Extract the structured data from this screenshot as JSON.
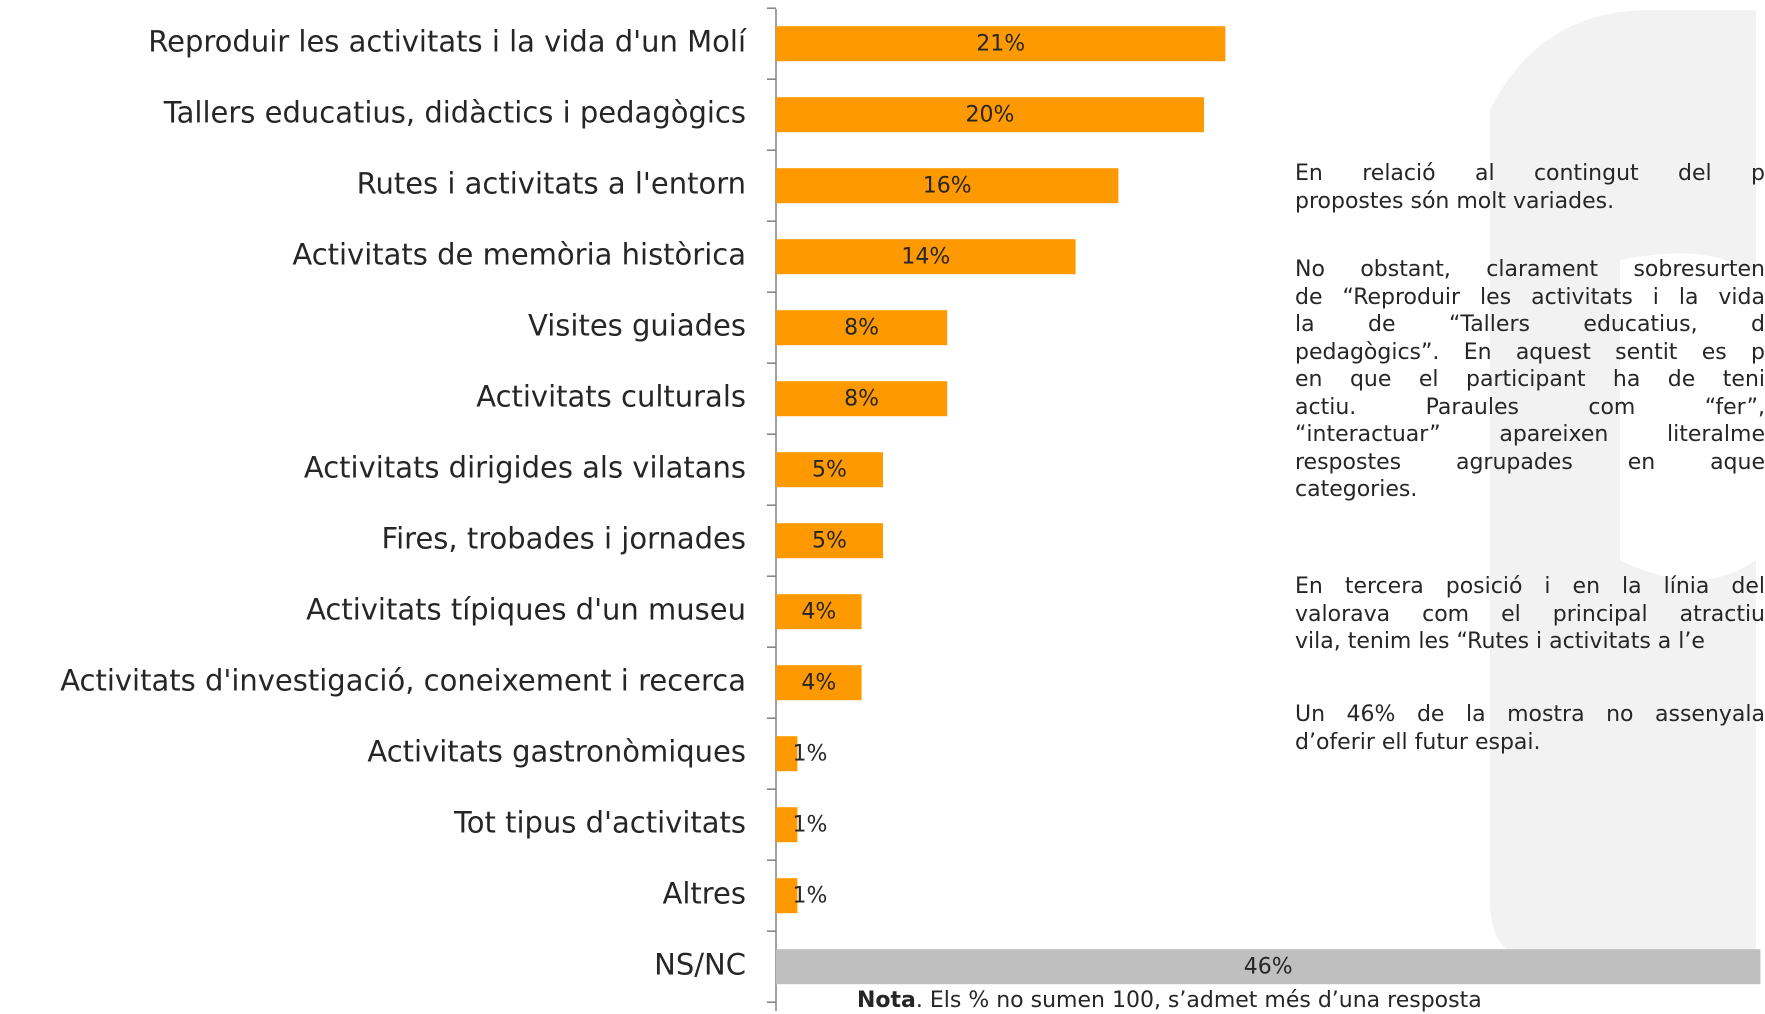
{
  "chart_data": {
    "type": "barh",
    "categories": [
      "Reproduir les activitats i la vida d'un Molí",
      "Tallers educatius, didàctics i pedagògics",
      "Rutes i activitats a l'entorn",
      "Activitats de memòria històrica",
      "Visites guiades",
      "Activitats culturals",
      "Activitats dirigides als vilatans",
      "Fires, trobades i jornades",
      "Activitats típiques d'un  museu",
      "Activitats d'investigació, coneixement i recerca",
      "Activitats gastronòmiques",
      "Tot tipus d'activitats",
      "Altres",
      "NS/NC"
    ],
    "values": [
      21,
      20,
      16,
      14,
      8,
      8,
      5,
      5,
      4,
      4,
      1,
      1,
      1,
      46
    ],
    "value_labels": [
      "21%",
      "20%",
      "16%",
      "14%",
      "8%",
      "8%",
      "5%",
      "5%",
      "4%",
      "4%",
      "1%",
      "1%",
      "1%",
      "46%"
    ],
    "colors": [
      "#ff9900",
      "#ff9900",
      "#ff9900",
      "#ff9900",
      "#ff9900",
      "#ff9900",
      "#ff9900",
      "#ff9900",
      "#ff9900",
      "#ff9900",
      "#ff9900",
      "#ff9900",
      "#ff9900",
      "#bfbfbf"
    ],
    "note_label": "Nota",
    "note_text": ". Els % no sumen 100, s’admet més d’una resposta"
  },
  "text_panel": {
    "paragraphs": [
      [
        "En relació al contingut del p",
        "propostes són molt variades."
      ],
      [
        "No obstant, clarament sobresurten",
        "de “Reproduir les activitats i la vida",
        "la de “Tallers educatius, d",
        "pedagògics”. En aquest sentit es p",
        "en que el participant ha de teni",
        "actiu. Paraules com “fer”,",
        "“interactuar” apareixen literalme",
        "respostes agrupades en aque",
        "categories."
      ],
      [
        "En tercera posició i en la línia del",
        "valorava com el principal atractiu",
        "vila, tenim les “Rutes i activitats a l’e"
      ],
      [
        "Un 46% de la mostra no assenyala",
        "d’oferir ell futur espai."
      ]
    ]
  }
}
